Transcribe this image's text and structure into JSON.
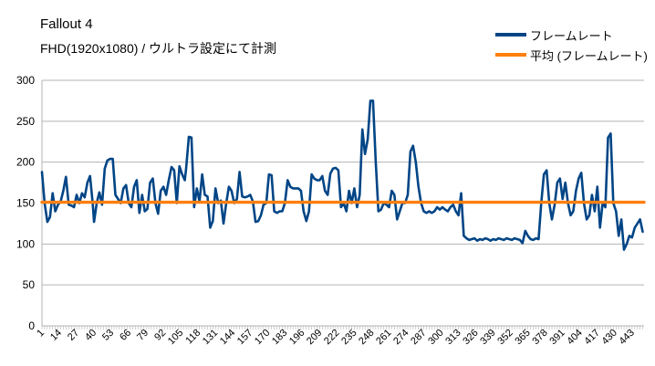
{
  "chart_data": {
    "type": "line",
    "title": "Fallout 4",
    "subtitle": "FHD(1920x1080) / ウルトラ設定にて計測",
    "xlabel": "",
    "ylabel": "",
    "ylim": [
      0,
      300
    ],
    "yticks": [
      0,
      50,
      100,
      150,
      200,
      250,
      300
    ],
    "grid": "horizontal",
    "legend_position": "top-right",
    "x_count": 452,
    "x_tick_labels": [
      "1",
      "14",
      "27",
      "40",
      "53",
      "66",
      "79",
      "92",
      "105",
      "118",
      "131",
      "144",
      "157",
      "170",
      "183",
      "196",
      "209",
      "222",
      "235",
      "248",
      "261",
      "274",
      "287",
      "300",
      "313",
      "326",
      "339",
      "352",
      "365",
      "378",
      "391",
      "404",
      "417",
      "430",
      "443"
    ],
    "series": [
      {
        "name": "フレームレート",
        "color": "#004586",
        "points": [
          [
            1,
            188
          ],
          [
            3,
            150
          ],
          [
            5,
            127
          ],
          [
            7,
            133
          ],
          [
            9,
            162
          ],
          [
            11,
            140
          ],
          [
            13,
            148
          ],
          [
            15,
            152
          ],
          [
            17,
            165
          ],
          [
            19,
            182
          ],
          [
            21,
            148
          ],
          [
            23,
            147
          ],
          [
            25,
            145
          ],
          [
            27,
            160
          ],
          [
            29,
            150
          ],
          [
            31,
            162
          ],
          [
            33,
            157
          ],
          [
            35,
            175
          ],
          [
            37,
            183
          ],
          [
            39,
            150
          ],
          [
            40,
            127
          ],
          [
            42,
            150
          ],
          [
            44,
            163
          ],
          [
            46,
            148
          ],
          [
            48,
            192
          ],
          [
            50,
            202
          ],
          [
            52,
            204
          ],
          [
            54,
            204
          ],
          [
            56,
            160
          ],
          [
            58,
            155
          ],
          [
            60,
            150
          ],
          [
            62,
            168
          ],
          [
            64,
            172
          ],
          [
            66,
            150
          ],
          [
            68,
            145
          ],
          [
            70,
            170
          ],
          [
            72,
            178
          ],
          [
            74,
            138
          ],
          [
            76,
            160
          ],
          [
            78,
            140
          ],
          [
            80,
            143
          ],
          [
            82,
            175
          ],
          [
            84,
            180
          ],
          [
            86,
            150
          ],
          [
            88,
            137
          ],
          [
            90,
            165
          ],
          [
            92,
            170
          ],
          [
            94,
            160
          ],
          [
            96,
            178
          ],
          [
            98,
            194
          ],
          [
            100,
            190
          ],
          [
            102,
            150
          ],
          [
            104,
            195
          ],
          [
            106,
            185
          ],
          [
            108,
            178
          ],
          [
            109,
            192
          ],
          [
            111,
            231
          ],
          [
            113,
            230
          ],
          [
            115,
            145
          ],
          [
            117,
            168
          ],
          [
            119,
            152
          ],
          [
            121,
            185
          ],
          [
            123,
            160
          ],
          [
            125,
            158
          ],
          [
            127,
            120
          ],
          [
            129,
            128
          ],
          [
            131,
            168
          ],
          [
            133,
            150
          ],
          [
            135,
            153
          ],
          [
            137,
            125
          ],
          [
            139,
            150
          ],
          [
            141,
            170
          ],
          [
            143,
            165
          ],
          [
            145,
            150
          ],
          [
            147,
            155
          ],
          [
            149,
            188
          ],
          [
            151,
            158
          ],
          [
            153,
            157
          ],
          [
            155,
            158
          ],
          [
            157,
            160
          ],
          [
            159,
            152
          ],
          [
            161,
            127
          ],
          [
            163,
            128
          ],
          [
            165,
            135
          ],
          [
            167,
            148
          ],
          [
            169,
            150
          ],
          [
            171,
            185
          ],
          [
            173,
            184
          ],
          [
            175,
            140
          ],
          [
            177,
            138
          ],
          [
            179,
            140
          ],
          [
            181,
            140
          ],
          [
            183,
            150
          ],
          [
            185,
            178
          ],
          [
            187,
            170
          ],
          [
            189,
            168
          ],
          [
            191,
            168
          ],
          [
            193,
            168
          ],
          [
            195,
            165
          ],
          [
            197,
            140
          ],
          [
            199,
            128
          ],
          [
            201,
            140
          ],
          [
            203,
            185
          ],
          [
            205,
            180
          ],
          [
            207,
            178
          ],
          [
            209,
            178
          ],
          [
            211,
            183
          ],
          [
            213,
            165
          ],
          [
            215,
            160
          ],
          [
            217,
            186
          ],
          [
            219,
            192
          ],
          [
            221,
            193
          ],
          [
            223,
            190
          ],
          [
            225,
            145
          ],
          [
            227,
            150
          ],
          [
            229,
            140
          ],
          [
            231,
            165
          ],
          [
            233,
            150
          ],
          [
            235,
            168
          ],
          [
            237,
            145
          ],
          [
            239,
            160
          ],
          [
            241,
            240
          ],
          [
            243,
            210
          ],
          [
            245,
            228
          ],
          [
            247,
            275
          ],
          [
            249,
            275
          ],
          [
            251,
            200
          ],
          [
            253,
            140
          ],
          [
            255,
            142
          ],
          [
            257,
            150
          ],
          [
            259,
            148
          ],
          [
            261,
            145
          ],
          [
            263,
            165
          ],
          [
            265,
            160
          ],
          [
            267,
            130
          ],
          [
            269,
            140
          ],
          [
            271,
            150
          ],
          [
            273,
            150
          ],
          [
            275,
            160
          ],
          [
            277,
            213
          ],
          [
            279,
            220
          ],
          [
            281,
            200
          ],
          [
            283,
            170
          ],
          [
            285,
            150
          ],
          [
            287,
            140
          ],
          [
            289,
            138
          ],
          [
            291,
            140
          ],
          [
            293,
            138
          ],
          [
            295,
            140
          ],
          [
            297,
            145
          ],
          [
            299,
            142
          ],
          [
            301,
            145
          ],
          [
            303,
            142
          ],
          [
            305,
            140
          ],
          [
            307,
            145
          ],
          [
            309,
            148
          ],
          [
            311,
            140
          ],
          [
            313,
            135
          ],
          [
            315,
            162
          ],
          [
            317,
            110
          ],
          [
            319,
            107
          ],
          [
            321,
            105
          ],
          [
            323,
            106
          ],
          [
            325,
            107
          ],
          [
            327,
            104
          ],
          [
            329,
            106
          ],
          [
            331,
            105
          ],
          [
            333,
            107
          ],
          [
            335,
            106
          ],
          [
            337,
            104
          ],
          [
            339,
            106
          ],
          [
            341,
            105
          ],
          [
            343,
            107
          ],
          [
            345,
            106
          ],
          [
            347,
            105
          ],
          [
            349,
            107
          ],
          [
            351,
            106
          ],
          [
            353,
            105
          ],
          [
            355,
            107
          ],
          [
            357,
            106
          ],
          [
            359,
            105
          ],
          [
            361,
            101
          ],
          [
            363,
            116
          ],
          [
            365,
            110
          ],
          [
            367,
            106
          ],
          [
            369,
            105
          ],
          [
            371,
            107
          ],
          [
            373,
            106
          ],
          [
            375,
            150
          ],
          [
            377,
            185
          ],
          [
            379,
            190
          ],
          [
            381,
            150
          ],
          [
            383,
            130
          ],
          [
            385,
            148
          ],
          [
            387,
            175
          ],
          [
            389,
            180
          ],
          [
            391,
            155
          ],
          [
            393,
            175
          ],
          [
            395,
            150
          ],
          [
            397,
            135
          ],
          [
            399,
            140
          ],
          [
            401,
            165
          ],
          [
            403,
            180
          ],
          [
            405,
            187
          ],
          [
            407,
            150
          ],
          [
            409,
            130
          ],
          [
            411,
            135
          ],
          [
            413,
            160
          ],
          [
            415,
            140
          ],
          [
            417,
            170
          ],
          [
            419,
            120
          ],
          [
            421,
            150
          ],
          [
            423,
            145
          ],
          [
            425,
            230
          ],
          [
            427,
            235
          ],
          [
            429,
            150
          ],
          [
            431,
            140
          ],
          [
            433,
            110
          ],
          [
            435,
            130
          ],
          [
            437,
            93
          ],
          [
            439,
            100
          ],
          [
            441,
            110
          ],
          [
            443,
            108
          ],
          [
            445,
            120
          ],
          [
            447,
            125
          ],
          [
            449,
            130
          ],
          [
            451,
            115
          ]
        ]
      },
      {
        "name": "平均 (フレームレート)",
        "color": "#ff7f0e",
        "points": [
          [
            1,
            151
          ],
          [
            452,
            151
          ]
        ]
      }
    ]
  }
}
